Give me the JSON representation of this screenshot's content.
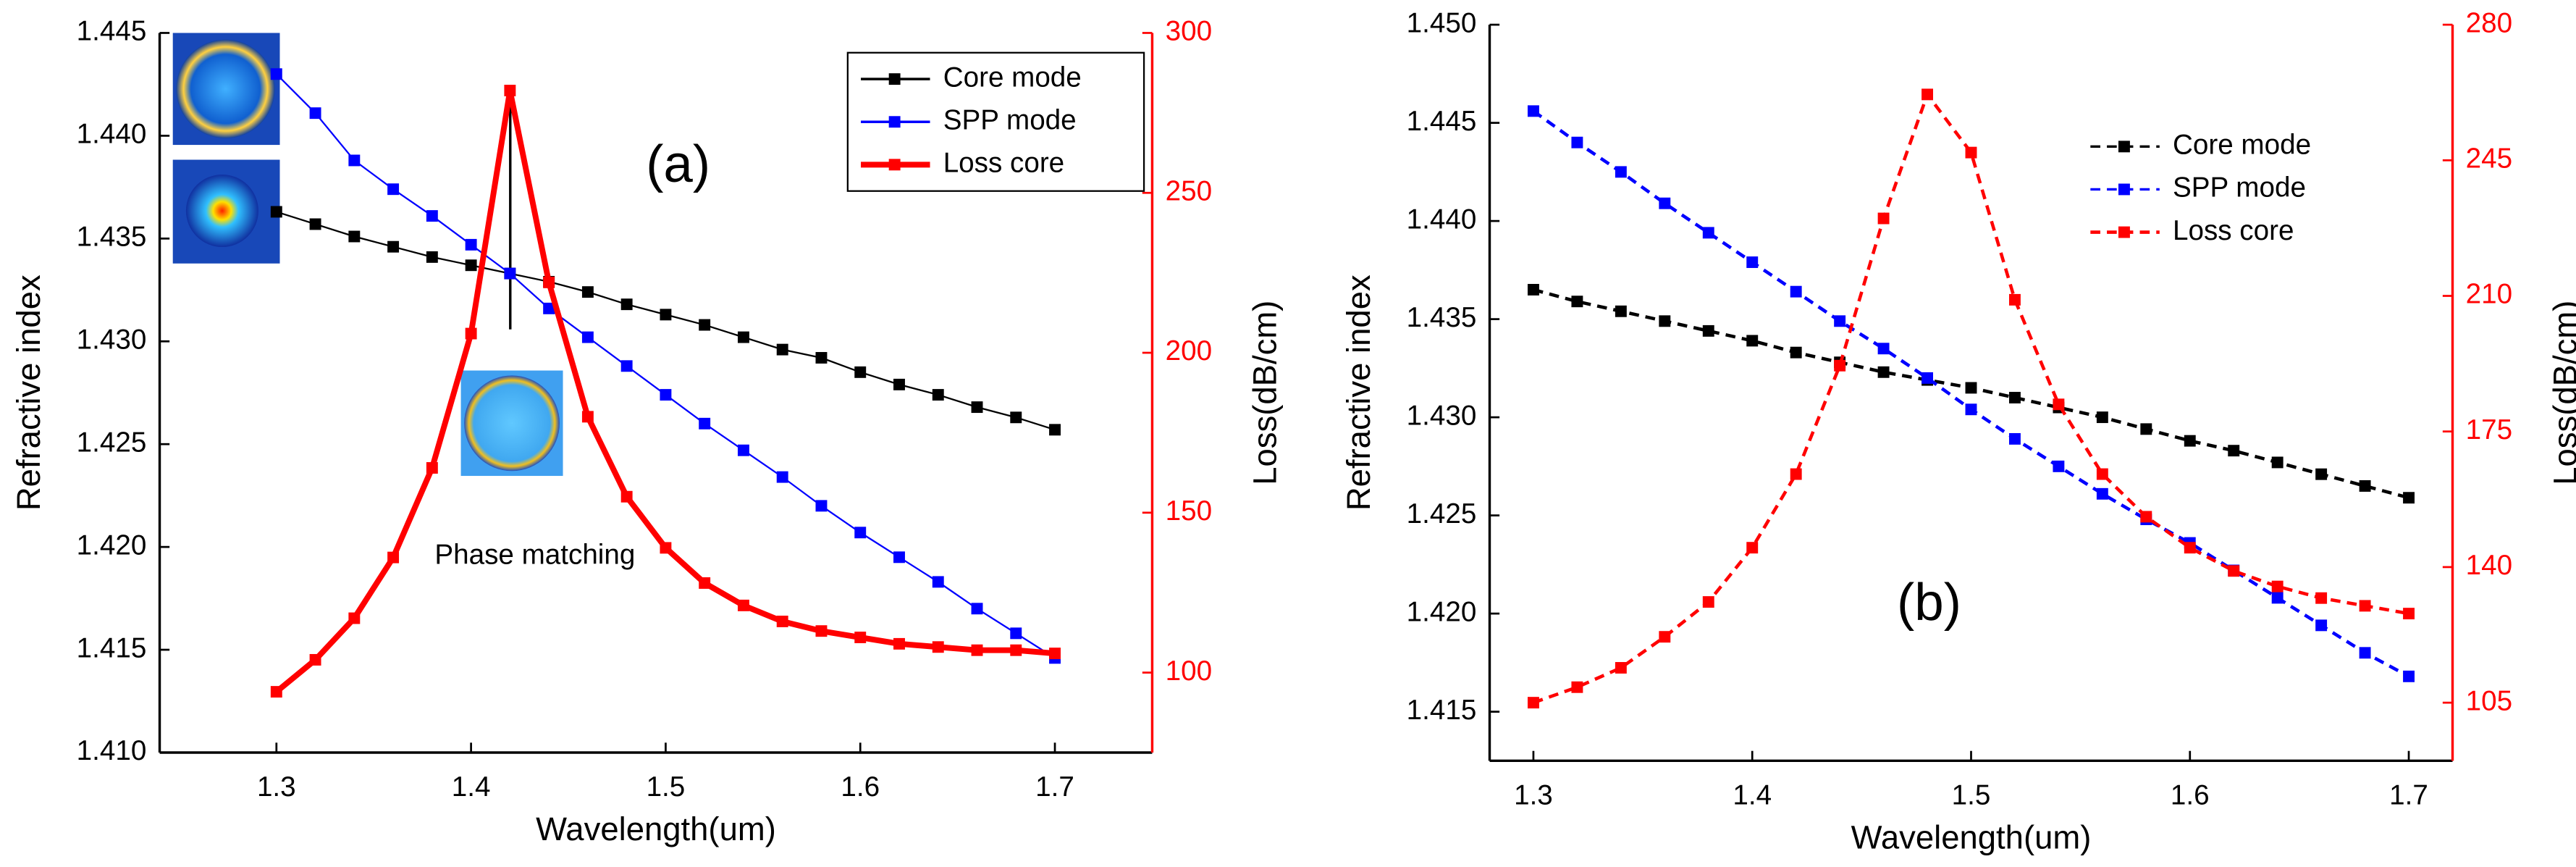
{
  "chart_data": [
    {
      "type": "line",
      "line_style": "solid",
      "legend": "upper right",
      "x_label": "Wavelength(um)",
      "y_label": "Refractive index",
      "y2_label": "Loss(dB/cm)",
      "annotations": [
        "(a)",
        "Phase matching"
      ],
      "xlim": [
        1.24,
        1.75
      ],
      "xticks": [
        1.3,
        1.4,
        1.5,
        1.6,
        1.7
      ],
      "ylim": [
        1.41,
        1.445
      ],
      "yticks": [
        {
          "value": 1.41,
          "label": "1.410"
        },
        {
          "value": 1.415,
          "label": "1.415"
        },
        {
          "value": 1.42,
          "label": "1.420"
        },
        {
          "value": 1.425,
          "label": "1.425"
        },
        {
          "value": 1.43,
          "label": "1.430"
        },
        {
          "value": 1.435,
          "label": "1.435"
        },
        {
          "value": 1.44,
          "label": "1.440"
        },
        {
          "value": 1.445,
          "label": "1.445"
        }
      ],
      "y2lim": [
        75,
        300
      ],
      "y2ticks": [
        100,
        150,
        200,
        250,
        300
      ],
      "x": [
        1.3,
        1.32,
        1.34,
        1.36,
        1.38,
        1.4,
        1.42,
        1.44,
        1.46,
        1.48,
        1.5,
        1.52,
        1.54,
        1.56,
        1.58,
        1.6,
        1.62,
        1.64,
        1.66,
        1.68,
        1.7
      ],
      "series": [
        {
          "name": "Core mode",
          "color": "#000000",
          "values": [
            1.4363,
            1.4357,
            1.4351,
            1.4346,
            1.4341,
            1.4337,
            1.4333,
            1.4329,
            1.4324,
            1.4318,
            1.4313,
            1.4308,
            1.4302,
            1.4296,
            1.4292,
            1.4285,
            1.4279,
            1.4274,
            1.4268,
            1.4263,
            1.4257
          ]
        },
        {
          "name": "SPP mode",
          "color": "#0000ff",
          "values": [
            1.443,
            1.4411,
            1.4388,
            1.4374,
            1.4361,
            1.4347,
            1.4333,
            1.4316,
            1.4302,
            1.4288,
            1.4274,
            1.426,
            1.4247,
            1.4234,
            1.422,
            1.4207,
            1.4195,
            1.4183,
            1.417,
            1.4158,
            1.4146
          ]
        },
        {
          "name": "Loss core",
          "color": "#ff0000",
          "axis": "y2",
          "values": [
            94,
            104,
            117,
            136,
            164,
            206,
            282,
            222,
            180,
            155,
            139,
            128,
            121,
            116,
            113,
            111,
            109,
            108,
            107,
            107,
            106
          ]
        }
      ]
    },
    {
      "type": "line",
      "line_style": "dashed",
      "legend": "upper right",
      "x_label": "Wavelength(um)",
      "y_label": "Refractive index",
      "y2_label": "Loss(dB/cm)",
      "annotations": [
        "(b)"
      ],
      "xlim": [
        1.28,
        1.72
      ],
      "xticks": [
        1.3,
        1.4,
        1.5,
        1.6,
        1.7
      ],
      "ylim": [
        1.4125,
        1.45
      ],
      "yticks": [
        {
          "value": 1.415,
          "label": "1.415"
        },
        {
          "value": 1.42,
          "label": "1.420"
        },
        {
          "value": 1.425,
          "label": "1.425"
        },
        {
          "value": 1.43,
          "label": "1.430"
        },
        {
          "value": 1.435,
          "label": "1.435"
        },
        {
          "value": 1.44,
          "label": "1.440"
        },
        {
          "value": 1.445,
          "label": "1.445"
        },
        {
          "value": 1.45,
          "label": "1.450"
        }
      ],
      "y2lim": [
        90,
        280
      ],
      "y2ticks": [
        105,
        140,
        175,
        210,
        245,
        280
      ],
      "x": [
        1.3,
        1.32,
        1.34,
        1.36,
        1.38,
        1.4,
        1.42,
        1.44,
        1.46,
        1.48,
        1.5,
        1.52,
        1.54,
        1.56,
        1.58,
        1.6,
        1.62,
        1.64,
        1.66,
        1.68,
        1.7
      ],
      "series": [
        {
          "name": "Core mode",
          "color": "#000000",
          "values": [
            1.4365,
            1.4359,
            1.4354,
            1.4349,
            1.4344,
            1.4339,
            1.4333,
            1.4328,
            1.4323,
            1.4319,
            1.4315,
            1.431,
            1.4305,
            1.43,
            1.4294,
            1.4288,
            1.4283,
            1.4277,
            1.4271,
            1.4265,
            1.4259
          ]
        },
        {
          "name": "SPP mode",
          "color": "#0000ff",
          "values": [
            1.4456,
            1.444,
            1.4425,
            1.4409,
            1.4394,
            1.4379,
            1.4364,
            1.4349,
            1.4335,
            1.432,
            1.4304,
            1.4289,
            1.4275,
            1.4261,
            1.4248,
            1.4236,
            1.4222,
            1.4208,
            1.4194,
            1.418,
            1.4168
          ]
        },
        {
          "name": "Loss core",
          "color": "#ff0000",
          "axis": "y2",
          "values": [
            105,
            109,
            114,
            122,
            131,
            145,
            164,
            192,
            230,
            262,
            247,
            209,
            182,
            164,
            153,
            145,
            139,
            135,
            132,
            130,
            128
          ]
        }
      ]
    }
  ]
}
